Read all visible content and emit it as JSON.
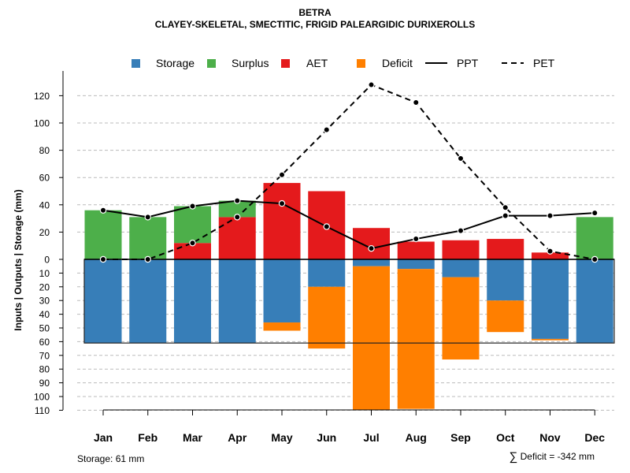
{
  "title": "BETRA",
  "subtitle": "CLAYEY-SKELETAL, SMECTITIC, FRIGID PALEARGIDIC DURIXEROLLS",
  "footer": {
    "storage_text": "Storage: 61 mm",
    "sigma": "∑",
    "deficit_text": "Deficit = -342 mm"
  },
  "colors": {
    "storage": "#377eb8",
    "surplus": "#4daf4a",
    "aet": "#e41a1c",
    "deficit": "#ff7f00",
    "grid": "#bbbbbb"
  },
  "chart_data": {
    "type": "bar",
    "title": "BETRA",
    "subtitle": "CLAYEY-SKELETAL, SMECTITIC, FRIGID PALEARGIDIC DURIXEROLLS",
    "ylabel": "Inputs | Outputs | Storage    (mm)",
    "categories": [
      "Jan",
      "Feb",
      "Mar",
      "Apr",
      "May",
      "Jun",
      "Jul",
      "Aug",
      "Sep",
      "Oct",
      "Nov",
      "Dec"
    ],
    "legend": [
      "Storage",
      "Surplus",
      "AET",
      "Deficit",
      "PPT",
      "PET"
    ],
    "upper_axis": {
      "ylim": [
        0,
        130
      ],
      "ticks": [
        0,
        20,
        40,
        60,
        80,
        100,
        120
      ]
    },
    "lower_axis": {
      "ylim": [
        0,
        110
      ],
      "ticks": [
        10,
        20,
        30,
        40,
        50,
        60,
        70,
        80,
        90,
        100,
        110
      ],
      "storage_capacity": 61
    },
    "series": [
      {
        "name": "Surplus",
        "values": [
          36,
          31,
          27,
          12,
          0,
          0,
          0,
          0,
          0,
          0,
          0,
          31
        ]
      },
      {
        "name": "AET",
        "values": [
          0,
          0,
          12,
          31,
          56,
          50,
          23,
          13,
          14,
          15,
          5,
          0
        ]
      },
      {
        "name": "Storage",
        "values": [
          61,
          61,
          61,
          61,
          46,
          20,
          5,
          7,
          13,
          30,
          58,
          61
        ]
      },
      {
        "name": "Deficit",
        "values": [
          0,
          0,
          0,
          0,
          6,
          45,
          105,
          102,
          60,
          23,
          1,
          0
        ]
      },
      {
        "name": "PPT",
        "values": [
          36,
          31,
          39,
          43,
          41,
          24,
          8,
          15,
          21,
          32,
          32,
          34
        ]
      },
      {
        "name": "PET",
        "values": [
          0,
          0,
          12,
          31,
          62,
          95,
          128,
          115,
          74,
          38,
          6,
          0
        ]
      }
    ]
  }
}
